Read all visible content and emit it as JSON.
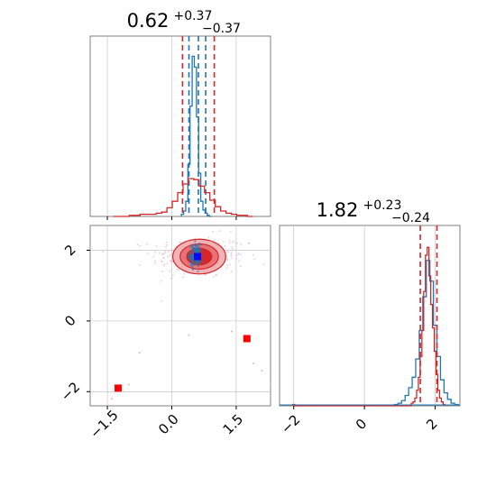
{
  "chart_data": [
    {
      "type": "histogram",
      "panel": "x-marginal",
      "title": {
        "value": "0.62",
        "plus": "+0.37",
        "minus": "−0.37"
      },
      "xlim": [
        -1.9,
        2.3
      ],
      "series": [
        {
          "color": "#1f77b4",
          "bin_width": 0.05,
          "x": [
            0.25,
            0.3,
            0.35,
            0.4,
            0.45,
            0.5,
            0.55,
            0.6,
            0.65,
            0.7,
            0.75,
            0.8,
            0.85,
            0.9
          ],
          "counts": [
            2,
            5,
            14,
            48,
            102,
            148,
            138,
            92,
            40,
            14,
            6,
            3,
            1,
            0
          ],
          "quantile_lines": [
            0.4,
            0.62,
            0.79
          ]
        },
        {
          "color": "#d62728",
          "bin_width": 0.125,
          "x": [
            -1.3,
            -1.175,
            -1.05,
            -0.925,
            -0.8,
            -0.675,
            -0.55,
            -0.425,
            -0.3,
            -0.175,
            -0.05,
            0.075,
            0.2,
            0.325,
            0.45,
            0.575,
            0.7,
            0.825,
            0.95,
            1.075,
            1.2,
            1.325,
            1.45,
            1.575,
            1.7,
            1.825
          ],
          "counts": [
            0,
            0,
            0,
            1,
            1,
            2,
            2,
            2,
            3,
            4,
            8,
            14,
            22,
            30,
            35,
            34,
            28,
            22,
            15,
            9,
            5,
            3,
            2,
            1,
            1,
            0
          ],
          "quantile_lines": [
            0.25,
            0.99
          ]
        }
      ]
    },
    {
      "type": "scatter-contour",
      "panel": "joint",
      "xlim": [
        -1.9,
        2.3
      ],
      "ylim": [
        -2.4,
        2.7
      ],
      "xticks": [
        "−1.5",
        "0.0",
        "1.5"
      ],
      "yticks": [
        "−2",
        "0",
        "2"
      ],
      "xtick_values": [
        -1.5,
        0.0,
        1.5
      ],
      "ytick_values": [
        -2,
        0,
        2
      ],
      "cluster": {
        "center": [
          0.62,
          1.82
        ],
        "sx": 0.55,
        "sy": 0.3,
        "contour_levels": [
          0.35,
          0.65,
          0.95
        ]
      },
      "blue_cluster": {
        "center": [
          0.55,
          1.85
        ],
        "sx": 0.13,
        "sy": 0.35
      },
      "red_markers": [
        [
          -1.25,
          -1.9
        ],
        [
          1.75,
          -0.5
        ]
      ],
      "blue_marker": [
        0.6,
        1.82
      ],
      "scatter_outliers": [
        [
          -1.4,
          -2.2
        ],
        [
          -1.0,
          -1.8
        ],
        [
          1.9,
          -1.2
        ],
        [
          2.3,
          -1.8
        ],
        [
          -0.75,
          -0.9
        ],
        [
          0.4,
          -0.4
        ],
        [
          1.4,
          -0.3
        ],
        [
          2.1,
          -1.4
        ],
        [
          0.0,
          1.2
        ],
        [
          1.8,
          2.2
        ]
      ]
    },
    {
      "type": "histogram",
      "panel": "y-marginal",
      "title": {
        "value": "1.82",
        "plus": "+0.23",
        "minus": "−0.24"
      },
      "xlim": [
        -2.4,
        2.7
      ],
      "xticks": [
        "−2",
        "0",
        "2"
      ],
      "xtick_values": [
        -2,
        0,
        2
      ],
      "series": [
        {
          "color": "#1f77b4",
          "bin_width": 0.1,
          "x": [
            0.9,
            1.0,
            1.1,
            1.2,
            1.3,
            1.4,
            1.5,
            1.6,
            1.7,
            1.8,
            1.9,
            2.0,
            2.1,
            2.2,
            2.3,
            2.4,
            2.5,
            2.6
          ],
          "counts": [
            1,
            2,
            4,
            8,
            14,
            22,
            36,
            58,
            84,
            112,
            96,
            62,
            38,
            20,
            10,
            5,
            2,
            1
          ],
          "quantile_lines": []
        },
        {
          "color": "#d62728",
          "bin_width": 0.05,
          "x": [
            -2.0,
            1.35,
            1.4,
            1.45,
            1.5,
            1.55,
            1.6,
            1.65,
            1.7,
            1.75,
            1.8,
            1.85,
            1.9,
            1.95,
            2.0,
            2.05,
            2.1,
            2.15,
            2.2,
            2.25
          ],
          "counts": [
            1,
            2,
            3,
            6,
            12,
            22,
            38,
            58,
            88,
            116,
            122,
            100,
            78,
            60,
            42,
            24,
            12,
            6,
            3,
            1
          ],
          "quantile_lines": [
            1.58,
            2.05
          ]
        }
      ]
    }
  ]
}
